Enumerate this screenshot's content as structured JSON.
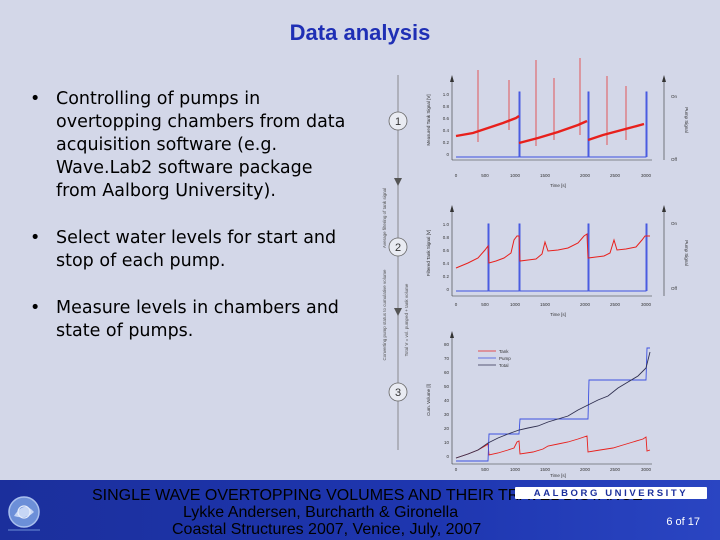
{
  "slide": {
    "title": "Data analysis",
    "bullets": [
      "Controlling of pumps in overtopping chambers from data acquisition software (e.g. Wave.Lab2 software package from Aalborg University).",
      "Select water levels for start and stop of each pump.",
      "Measure levels in chambers and state of pumps."
    ]
  },
  "figure": {
    "step_labels": [
      "1",
      "2",
      "3"
    ],
    "arrow_labels": [
      "Average filtering of tank signal",
      "Converting pump status to cumulative volume",
      "Total V = vol. pumped + tank volume"
    ],
    "plot1": {
      "ylabel": "Measured Tank Signal [V]",
      "xlabel": "Time [s]",
      "right_label": "Pump Signal",
      "on_label": "On",
      "off_label": "Off",
      "yticks": [
        "1.0",
        "0.8",
        "0.6",
        "0.4",
        "0.2",
        "0"
      ],
      "xticks": [
        "0",
        "500",
        "1000",
        "1500",
        "2000",
        "2500",
        "3000"
      ]
    },
    "plot2": {
      "ylabel": "Filtered Tank Signal [V]",
      "xlabel": "Time [s]",
      "right_label": "Pump Signal",
      "on_label": "On",
      "off_label": "Off",
      "yticks": [
        "1.0",
        "0.8",
        "0.6",
        "0.4",
        "0.2",
        "0"
      ],
      "xticks": [
        "0",
        "500",
        "1000",
        "1500",
        "2000",
        "2500",
        "3000"
      ]
    },
    "plot3": {
      "ylabel": "Cum. Volume [l]",
      "xlabel": "Time [s]",
      "yticks": [
        "80",
        "70",
        "60",
        "50",
        "40",
        "30",
        "20",
        "10",
        "0"
      ],
      "xticks": [
        "0",
        "500",
        "1000",
        "1500",
        "2000",
        "2500",
        "3000"
      ],
      "legend": [
        "Tank",
        "Pump",
        "Total"
      ]
    },
    "colors": {
      "tank": "#e8201c",
      "pump": "#3c50e0",
      "total": "#303050"
    }
  },
  "footer": {
    "line1": "SINGLE WAVE OVERTOPPING VOLUMES AND THEIR TRAVEL DISTANCE",
    "line2": "Lykke Andersen, Burcharth & Gironella",
    "line3": "Coastal Structures 2007, Venice, July, 2007",
    "university": "AALBORG UNIVERSITY",
    "page": "6 of 17"
  }
}
